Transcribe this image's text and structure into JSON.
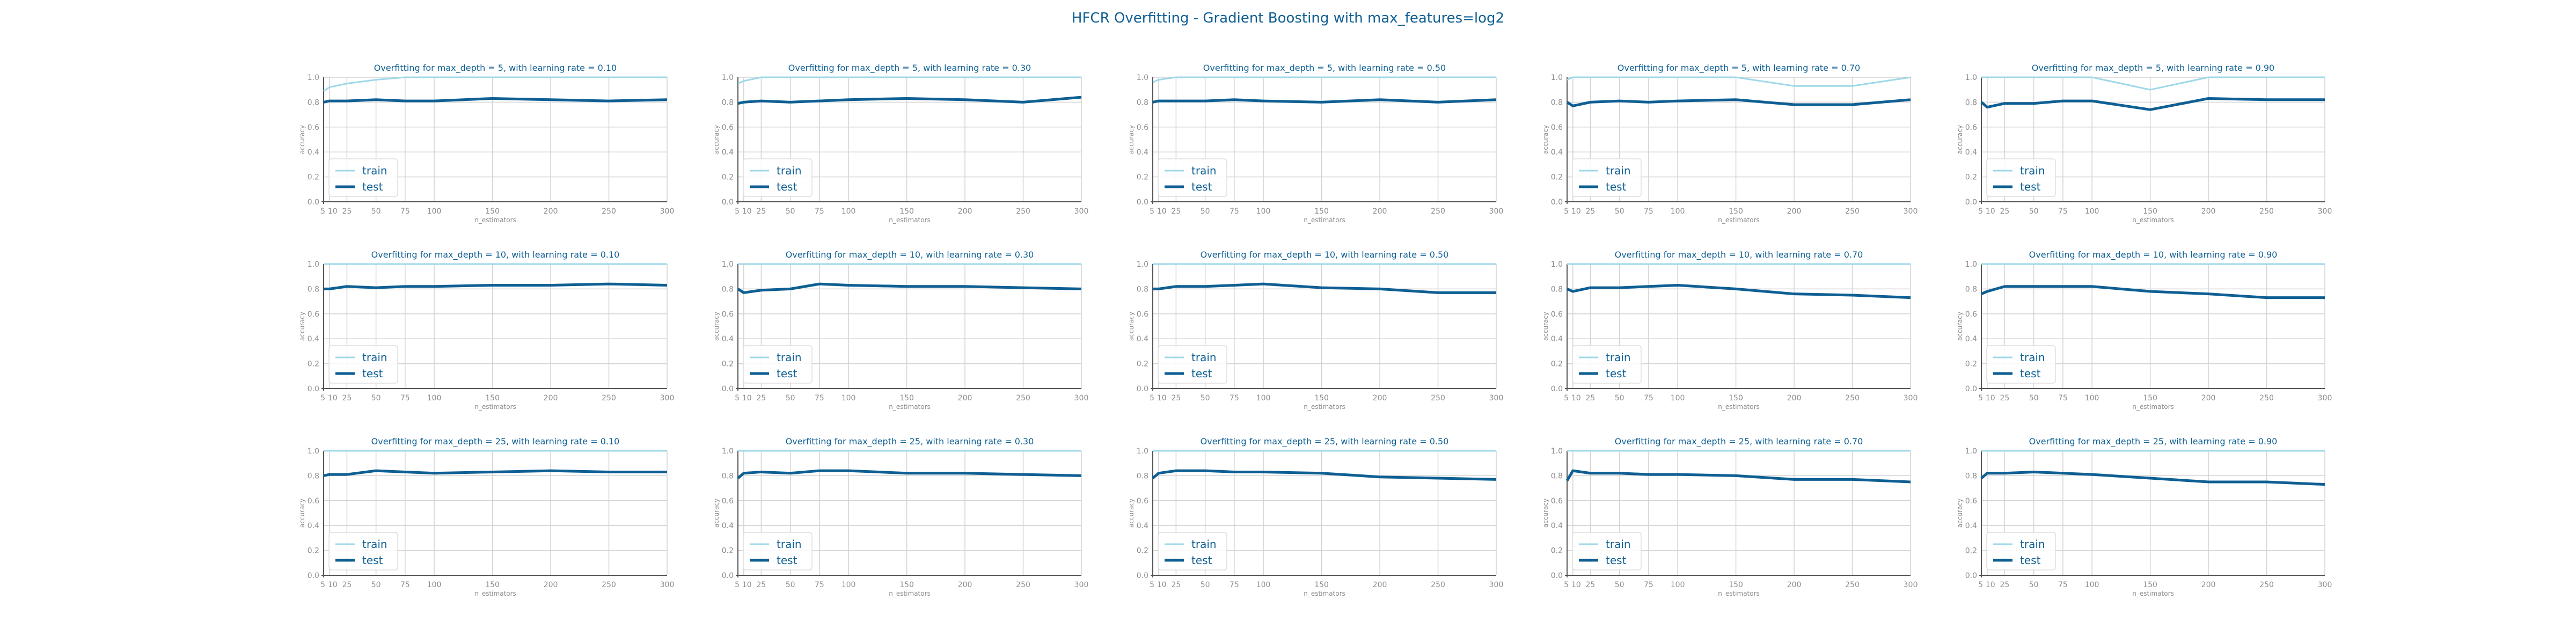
{
  "figure": {
    "title": "HFCR Overfitting - Gradient Boosting with max_features=log2",
    "colors": {
      "train": "#9fd8e9",
      "test": "#0e5f93",
      "title": "#0e5f93",
      "tick": "#8c8c8c",
      "grid": "#d3d3d3",
      "axis": "#555555"
    }
  },
  "chart_data": [
    {
      "type": "line",
      "title": "Overfitting for max_depth = 5, with learning rate = 0.10",
      "xlabel": "n_estimators",
      "ylabel": "accuracy",
      "x": [
        5,
        10,
        25,
        50,
        75,
        100,
        150,
        200,
        250,
        300
      ],
      "xticks": [
        5,
        10,
        25,
        50,
        75,
        100,
        150,
        200,
        250,
        300
      ],
      "ylim": [
        0.0,
        1.0
      ],
      "yticks": [
        0.0,
        0.2,
        0.4,
        0.6,
        0.8,
        1.0
      ],
      "grid": true,
      "legend": "lower-left",
      "series": [
        {
          "name": "train",
          "values": [
            0.89,
            0.92,
            0.95,
            0.98,
            1.0,
            1.0,
            1.0,
            1.0,
            1.0,
            1.0
          ]
        },
        {
          "name": "test",
          "values": [
            0.8,
            0.81,
            0.81,
            0.82,
            0.81,
            0.81,
            0.83,
            0.82,
            0.81,
            0.82
          ]
        }
      ]
    },
    {
      "type": "line",
      "title": "Overfitting for max_depth = 5, with learning rate = 0.30",
      "xlabel": "n_estimators",
      "ylabel": "accuracy",
      "x": [
        5,
        10,
        25,
        50,
        75,
        100,
        150,
        200,
        250,
        300
      ],
      "xticks": [
        5,
        10,
        25,
        50,
        75,
        100,
        150,
        200,
        250,
        300
      ],
      "ylim": [
        0.0,
        1.0
      ],
      "yticks": [
        0.0,
        0.2,
        0.4,
        0.6,
        0.8,
        1.0
      ],
      "grid": true,
      "legend": "lower-left",
      "series": [
        {
          "name": "train",
          "values": [
            0.95,
            0.97,
            1.0,
            1.0,
            1.0,
            1.0,
            1.0,
            1.0,
            1.0,
            1.0
          ]
        },
        {
          "name": "test",
          "values": [
            0.79,
            0.8,
            0.81,
            0.8,
            0.81,
            0.82,
            0.83,
            0.82,
            0.8,
            0.84
          ]
        }
      ]
    },
    {
      "type": "line",
      "title": "Overfitting for max_depth = 5, with learning rate = 0.50",
      "xlabel": "n_estimators",
      "ylabel": "accuracy",
      "x": [
        5,
        10,
        25,
        50,
        75,
        100,
        150,
        200,
        250,
        300
      ],
      "xticks": [
        5,
        10,
        25,
        50,
        75,
        100,
        150,
        200,
        250,
        300
      ],
      "ylim": [
        0.0,
        1.0
      ],
      "yticks": [
        0.0,
        0.2,
        0.4,
        0.6,
        0.8,
        1.0
      ],
      "grid": true,
      "legend": "lower-left",
      "series": [
        {
          "name": "train",
          "values": [
            0.96,
            0.98,
            1.0,
            1.0,
            1.0,
            1.0,
            1.0,
            1.0,
            1.0,
            1.0
          ]
        },
        {
          "name": "test",
          "values": [
            0.8,
            0.81,
            0.81,
            0.81,
            0.82,
            0.81,
            0.8,
            0.82,
            0.8,
            0.82
          ]
        }
      ]
    },
    {
      "type": "line",
      "title": "Overfitting for max_depth = 5, with learning rate = 0.70",
      "xlabel": "n_estimators",
      "ylabel": "accuracy",
      "x": [
        5,
        10,
        25,
        50,
        75,
        100,
        150,
        200,
        250,
        300
      ],
      "xticks": [
        5,
        10,
        25,
        50,
        75,
        100,
        150,
        200,
        250,
        300
      ],
      "ylim": [
        0.0,
        1.0
      ],
      "yticks": [
        0.0,
        0.2,
        0.4,
        0.6,
        0.8,
        1.0
      ],
      "grid": true,
      "legend": "lower-left",
      "series": [
        {
          "name": "train",
          "values": [
            0.98,
            1.0,
            1.0,
            1.0,
            1.0,
            1.0,
            1.0,
            0.93,
            0.93,
            1.0
          ]
        },
        {
          "name": "test",
          "values": [
            0.8,
            0.77,
            0.8,
            0.81,
            0.8,
            0.81,
            0.82,
            0.78,
            0.78,
            0.82
          ]
        }
      ]
    },
    {
      "type": "line",
      "title": "Overfitting for max_depth = 5, with learning rate = 0.90",
      "xlabel": "n_estimators",
      "ylabel": "accuracy",
      "x": [
        5,
        10,
        25,
        50,
        75,
        100,
        150,
        200,
        250,
        300
      ],
      "xticks": [
        5,
        10,
        25,
        50,
        75,
        100,
        150,
        200,
        250,
        300
      ],
      "ylim": [
        0.0,
        1.0
      ],
      "yticks": [
        0.0,
        0.2,
        0.4,
        0.6,
        0.8,
        1.0
      ],
      "grid": true,
      "legend": "lower-left",
      "series": [
        {
          "name": "train",
          "values": [
            1.0,
            1.0,
            1.0,
            1.0,
            1.0,
            1.0,
            0.9,
            1.0,
            1.0,
            1.0
          ]
        },
        {
          "name": "test",
          "values": [
            0.8,
            0.76,
            0.79,
            0.79,
            0.81,
            0.81,
            0.74,
            0.83,
            0.82,
            0.82
          ]
        }
      ]
    },
    {
      "type": "line",
      "title": "Overfitting for max_depth = 10, with learning rate = 0.10",
      "xlabel": "n_estimators",
      "ylabel": "accuracy",
      "x": [
        5,
        10,
        25,
        50,
        75,
        100,
        150,
        200,
        250,
        300
      ],
      "xticks": [
        5,
        10,
        25,
        50,
        75,
        100,
        150,
        200,
        250,
        300
      ],
      "ylim": [
        0.0,
        1.0
      ],
      "yticks": [
        0.0,
        0.2,
        0.4,
        0.6,
        0.8,
        1.0
      ],
      "grid": true,
      "legend": "lower-left",
      "series": [
        {
          "name": "train",
          "values": [
            1.0,
            1.0,
            1.0,
            1.0,
            1.0,
            1.0,
            1.0,
            1.0,
            1.0,
            1.0
          ]
        },
        {
          "name": "test",
          "values": [
            0.8,
            0.8,
            0.82,
            0.81,
            0.82,
            0.82,
            0.83,
            0.83,
            0.84,
            0.83
          ]
        }
      ]
    },
    {
      "type": "line",
      "title": "Overfitting for max_depth = 10, with learning rate = 0.30",
      "xlabel": "n_estimators",
      "ylabel": "accuracy",
      "x": [
        5,
        10,
        25,
        50,
        75,
        100,
        150,
        200,
        250,
        300
      ],
      "xticks": [
        5,
        10,
        25,
        50,
        75,
        100,
        150,
        200,
        250,
        300
      ],
      "ylim": [
        0.0,
        1.0
      ],
      "yticks": [
        0.0,
        0.2,
        0.4,
        0.6,
        0.8,
        1.0
      ],
      "grid": true,
      "legend": "lower-left",
      "series": [
        {
          "name": "train",
          "values": [
            1.0,
            1.0,
            1.0,
            1.0,
            1.0,
            1.0,
            1.0,
            1.0,
            1.0,
            1.0
          ]
        },
        {
          "name": "test",
          "values": [
            0.8,
            0.77,
            0.79,
            0.8,
            0.84,
            0.83,
            0.82,
            0.82,
            0.81,
            0.8
          ]
        }
      ]
    },
    {
      "type": "line",
      "title": "Overfitting for max_depth = 10, with learning rate = 0.50",
      "xlabel": "n_estimators",
      "ylabel": "accuracy",
      "x": [
        5,
        10,
        25,
        50,
        75,
        100,
        150,
        200,
        250,
        300
      ],
      "xticks": [
        5,
        10,
        25,
        50,
        75,
        100,
        150,
        200,
        250,
        300
      ],
      "ylim": [
        0.0,
        1.0
      ],
      "yticks": [
        0.0,
        0.2,
        0.4,
        0.6,
        0.8,
        1.0
      ],
      "grid": true,
      "legend": "lower-left",
      "series": [
        {
          "name": "train",
          "values": [
            1.0,
            1.0,
            1.0,
            1.0,
            1.0,
            1.0,
            1.0,
            1.0,
            1.0,
            1.0
          ]
        },
        {
          "name": "test",
          "values": [
            0.8,
            0.8,
            0.82,
            0.82,
            0.83,
            0.84,
            0.81,
            0.8,
            0.77,
            0.77
          ]
        }
      ]
    },
    {
      "type": "line",
      "title": "Overfitting for max_depth = 10, with learning rate = 0.70",
      "xlabel": "n_estimators",
      "ylabel": "accuracy",
      "x": [
        5,
        10,
        25,
        50,
        75,
        100,
        150,
        200,
        250,
        300
      ],
      "xticks": [
        5,
        10,
        25,
        50,
        75,
        100,
        150,
        200,
        250,
        300
      ],
      "ylim": [
        0.0,
        1.0
      ],
      "yticks": [
        0.0,
        0.2,
        0.4,
        0.6,
        0.8,
        1.0
      ],
      "grid": true,
      "legend": "lower-left",
      "series": [
        {
          "name": "train",
          "values": [
            1.0,
            1.0,
            1.0,
            1.0,
            1.0,
            1.0,
            1.0,
            1.0,
            1.0,
            1.0
          ]
        },
        {
          "name": "test",
          "values": [
            0.8,
            0.78,
            0.81,
            0.81,
            0.82,
            0.83,
            0.8,
            0.76,
            0.75,
            0.73
          ]
        }
      ]
    },
    {
      "type": "line",
      "title": "Overfitting for max_depth = 10, with learning rate = 0.90",
      "xlabel": "n_estimators",
      "ylabel": "accuracy",
      "x": [
        5,
        10,
        25,
        50,
        75,
        100,
        150,
        200,
        250,
        300
      ],
      "xticks": [
        5,
        10,
        25,
        50,
        75,
        100,
        150,
        200,
        250,
        300
      ],
      "ylim": [
        0.0,
        1.0
      ],
      "yticks": [
        0.0,
        0.2,
        0.4,
        0.6,
        0.8,
        1.0
      ],
      "grid": true,
      "legend": "lower-left",
      "series": [
        {
          "name": "train",
          "values": [
            1.0,
            1.0,
            1.0,
            1.0,
            1.0,
            1.0,
            1.0,
            1.0,
            1.0,
            1.0
          ]
        },
        {
          "name": "test",
          "values": [
            0.76,
            0.78,
            0.82,
            0.82,
            0.82,
            0.82,
            0.78,
            0.76,
            0.73,
            0.73
          ]
        }
      ]
    },
    {
      "type": "line",
      "title": "Overfitting for max_depth = 25, with learning rate = 0.10",
      "xlabel": "n_estimators",
      "ylabel": "accuracy",
      "x": [
        5,
        10,
        25,
        50,
        75,
        100,
        150,
        200,
        250,
        300
      ],
      "xticks": [
        5,
        10,
        25,
        50,
        75,
        100,
        150,
        200,
        250,
        300
      ],
      "ylim": [
        0.0,
        1.0
      ],
      "yticks": [
        0.0,
        0.2,
        0.4,
        0.6,
        0.8,
        1.0
      ],
      "grid": true,
      "legend": "lower-left",
      "series": [
        {
          "name": "train",
          "values": [
            1.0,
            1.0,
            1.0,
            1.0,
            1.0,
            1.0,
            1.0,
            1.0,
            1.0,
            1.0
          ]
        },
        {
          "name": "test",
          "values": [
            0.8,
            0.81,
            0.81,
            0.84,
            0.83,
            0.82,
            0.83,
            0.84,
            0.83,
            0.83
          ]
        }
      ]
    },
    {
      "type": "line",
      "title": "Overfitting for max_depth = 25, with learning rate = 0.30",
      "xlabel": "n_estimators",
      "ylabel": "accuracy",
      "x": [
        5,
        10,
        25,
        50,
        75,
        100,
        150,
        200,
        250,
        300
      ],
      "xticks": [
        5,
        10,
        25,
        50,
        75,
        100,
        150,
        200,
        250,
        300
      ],
      "ylim": [
        0.0,
        1.0
      ],
      "yticks": [
        0.0,
        0.2,
        0.4,
        0.6,
        0.8,
        1.0
      ],
      "grid": true,
      "legend": "lower-left",
      "series": [
        {
          "name": "train",
          "values": [
            1.0,
            1.0,
            1.0,
            1.0,
            1.0,
            1.0,
            1.0,
            1.0,
            1.0,
            1.0
          ]
        },
        {
          "name": "test",
          "values": [
            0.78,
            0.82,
            0.83,
            0.82,
            0.84,
            0.84,
            0.82,
            0.82,
            0.81,
            0.8
          ]
        }
      ]
    },
    {
      "type": "line",
      "title": "Overfitting for max_depth = 25, with learning rate = 0.50",
      "xlabel": "n_estimators",
      "ylabel": "accuracy",
      "x": [
        5,
        10,
        25,
        50,
        75,
        100,
        150,
        200,
        250,
        300
      ],
      "xticks": [
        5,
        10,
        25,
        50,
        75,
        100,
        150,
        200,
        250,
        300
      ],
      "ylim": [
        0.0,
        1.0
      ],
      "yticks": [
        0.0,
        0.2,
        0.4,
        0.6,
        0.8,
        1.0
      ],
      "grid": true,
      "legend": "lower-left",
      "series": [
        {
          "name": "train",
          "values": [
            1.0,
            1.0,
            1.0,
            1.0,
            1.0,
            1.0,
            1.0,
            1.0,
            1.0,
            1.0
          ]
        },
        {
          "name": "test",
          "values": [
            0.78,
            0.82,
            0.84,
            0.84,
            0.83,
            0.83,
            0.82,
            0.79,
            0.78,
            0.77
          ]
        }
      ]
    },
    {
      "type": "line",
      "title": "Overfitting for max_depth = 25, with learning rate = 0.70",
      "xlabel": "n_estimators",
      "ylabel": "accuracy",
      "x": [
        5,
        10,
        25,
        50,
        75,
        100,
        150,
        200,
        250,
        300
      ],
      "xticks": [
        5,
        10,
        25,
        50,
        75,
        100,
        150,
        200,
        250,
        300
      ],
      "ylim": [
        0.0,
        1.0
      ],
      "yticks": [
        0.0,
        0.2,
        0.4,
        0.6,
        0.8,
        1.0
      ],
      "grid": true,
      "legend": "lower-left",
      "series": [
        {
          "name": "train",
          "values": [
            1.0,
            1.0,
            1.0,
            1.0,
            1.0,
            1.0,
            1.0,
            1.0,
            1.0,
            1.0
          ]
        },
        {
          "name": "test",
          "values": [
            0.76,
            0.84,
            0.82,
            0.82,
            0.81,
            0.81,
            0.8,
            0.77,
            0.77,
            0.75
          ]
        }
      ]
    },
    {
      "type": "line",
      "title": "Overfitting for max_depth = 25, with learning rate = 0.90",
      "xlabel": "n_estimators",
      "ylabel": "accuracy",
      "x": [
        5,
        10,
        25,
        50,
        75,
        100,
        150,
        200,
        250,
        300
      ],
      "xticks": [
        5,
        10,
        25,
        50,
        75,
        100,
        150,
        200,
        250,
        300
      ],
      "ylim": [
        0.0,
        1.0
      ],
      "yticks": [
        0.0,
        0.2,
        0.4,
        0.6,
        0.8,
        1.0
      ],
      "grid": true,
      "legend": "lower-left",
      "series": [
        {
          "name": "train",
          "values": [
            1.0,
            1.0,
            1.0,
            1.0,
            1.0,
            1.0,
            1.0,
            1.0,
            1.0,
            1.0
          ]
        },
        {
          "name": "test",
          "values": [
            0.78,
            0.82,
            0.82,
            0.83,
            0.82,
            0.81,
            0.78,
            0.75,
            0.75,
            0.73
          ]
        }
      ]
    }
  ]
}
